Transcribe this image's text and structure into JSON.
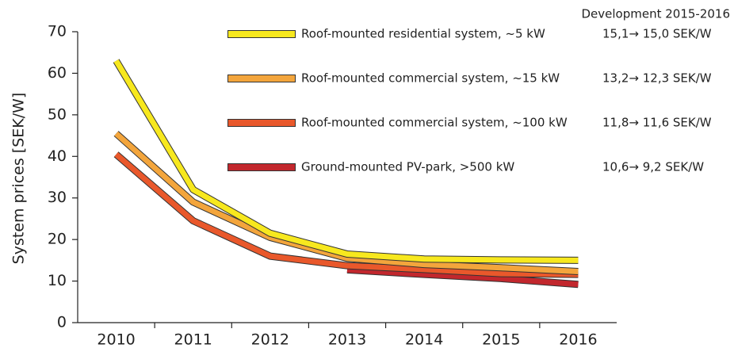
{
  "chart_data": {
    "type": "line",
    "y_label": "System prices [SEK/W]",
    "categories": [
      "2010",
      "2011",
      "2012",
      "2013",
      "2014",
      "2015",
      "2016"
    ],
    "series": [
      {
        "name": "Roof-mounted residential system, ~5 kW",
        "color": "#f7e81e",
        "values": [
          63,
          32,
          21.5,
          16.5,
          15.3,
          15.1,
          15.0
        ]
      },
      {
        "name": "Roof-mounted commercial system, ~15 kW",
        "color": "#f3a53c",
        "values": [
          45.5,
          29,
          20.5,
          15.5,
          14,
          13.2,
          12.3
        ]
      },
      {
        "name": "Roof-mounted commercial system, ~100 kW",
        "color": "#e9582b",
        "values": [
          40.5,
          24.5,
          16,
          13.7,
          12.8,
          11.8,
          11.6
        ]
      },
      {
        "name": "Ground-mounted PV-park, >500 kW",
        "color": "#c2272d",
        "values": [
          null,
          null,
          null,
          12.7,
          11.6,
          10.6,
          9.2
        ]
      }
    ],
    "development": {
      "title": "Development 2015-2016",
      "items": [
        "15,1→ 15,0 SEK/W",
        "13,2→ 12,3 SEK/W",
        "11,8→ 11,6 SEK/W",
        "10,6→ 9,2 SEK/W"
      ]
    },
    "ylim": [
      0,
      70
    ],
    "yticks": [
      0,
      10,
      20,
      30,
      40,
      50,
      60,
      70
    ]
  }
}
